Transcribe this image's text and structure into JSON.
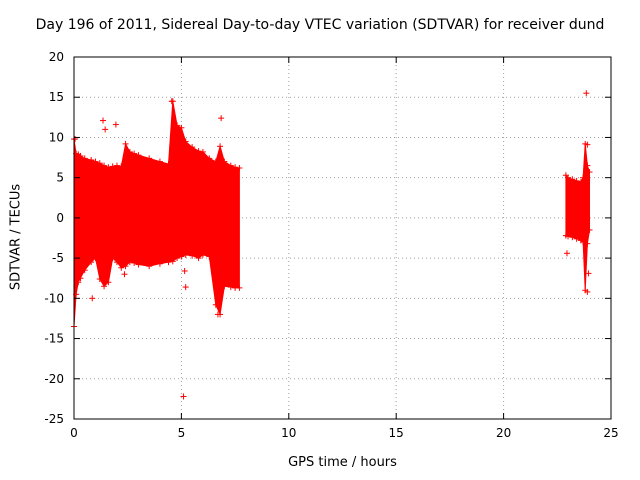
{
  "chart_data": {
    "type": "scatter",
    "title": "Day 196 of 2011, Sidereal Day-to-day VTEC variation (SDTVAR) for receiver dund",
    "xlabel": "GPS time / hours",
    "ylabel": "SDTVAR / TECUs",
    "xlim": [
      0,
      25
    ],
    "ylim": [
      -25,
      20
    ],
    "xticks": [
      0,
      5,
      10,
      15,
      20,
      25
    ],
    "yticks": [
      -25,
      -20,
      -15,
      -10,
      -5,
      0,
      5,
      10,
      15,
      20
    ],
    "grid": true,
    "color": "#ff0000",
    "marker": "+",
    "series": [
      {
        "name": "SDTVAR",
        "envelope_hours_0_to_7_7": {
          "x": [
            0.0,
            0.1,
            0.2,
            0.3,
            0.5,
            0.8,
            1.0,
            1.2,
            1.4,
            1.6,
            1.8,
            2.0,
            2.2,
            2.4,
            2.6,
            2.8,
            3.0,
            3.5,
            4.0,
            4.4,
            4.6,
            4.8,
            5.0,
            5.2,
            5.5,
            5.8,
            6.0,
            6.3,
            6.6,
            6.8,
            7.0,
            7.3,
            7.5,
            7.7
          ],
          "upper": [
            9.8,
            8.0,
            7.9,
            7.7,
            7.4,
            7.2,
            7.0,
            6.8,
            6.5,
            6.3,
            6.4,
            6.5,
            6.4,
            9.2,
            8.2,
            8.0,
            7.8,
            7.4,
            7.0,
            6.7,
            14.5,
            11.5,
            11.2,
            9.5,
            8.8,
            8.3,
            8.2,
            7.4,
            7.0,
            8.9,
            7.0,
            6.5,
            6.3,
            6.2
          ],
          "lower": [
            -13.5,
            -9.5,
            -8.0,
            -7.5,
            -6.5,
            -5.5,
            -5.0,
            -7.6,
            -8.5,
            -8.0,
            -5.0,
            -5.5,
            -6.2,
            -6.0,
            -5.5,
            -5.6,
            -5.8,
            -6.0,
            -5.7,
            -5.5,
            -5.4,
            -5.0,
            -4.8,
            -4.6,
            -4.7,
            -5.0,
            -4.6,
            -4.8,
            -10.8,
            -12.0,
            -8.5,
            -8.6,
            -8.7,
            -8.7
          ]
        },
        "envelope_hours_22_9_to_24_0": {
          "x": [
            22.9,
            23.0,
            23.2,
            23.4,
            23.6,
            23.7,
            23.8,
            23.9,
            24.0
          ],
          "upper": [
            5.3,
            5.0,
            4.8,
            4.6,
            4.5,
            5.0,
            9.2,
            6.5,
            5.7
          ],
          "lower": [
            -2.2,
            -2.3,
            -2.4,
            -2.6,
            -2.8,
            -3.0,
            -9.0,
            -3.2,
            -1.5
          ]
        },
        "outliers": [
          {
            "x": 0.05,
            "y": 9.8
          },
          {
            "x": 0.0,
            "y": -13.5
          },
          {
            "x": 0.85,
            "y": -10.0
          },
          {
            "x": 1.35,
            "y": 12.1
          },
          {
            "x": 1.45,
            "y": 11.0
          },
          {
            "x": 1.95,
            "y": 11.6
          },
          {
            "x": 2.35,
            "y": -7.0
          },
          {
            "x": 4.55,
            "y": 14.5
          },
          {
            "x": 5.1,
            "y": -22.2
          },
          {
            "x": 5.15,
            "y": -6.6
          },
          {
            "x": 5.2,
            "y": -8.6
          },
          {
            "x": 6.85,
            "y": 12.4
          },
          {
            "x": 6.7,
            "y": -12.0
          },
          {
            "x": 22.95,
            "y": -4.4
          },
          {
            "x": 23.85,
            "y": 15.5
          },
          {
            "x": 23.9,
            "y": 9.1
          },
          {
            "x": 23.95,
            "y": -6.9
          },
          {
            "x": 23.9,
            "y": -9.2
          }
        ]
      }
    ]
  }
}
